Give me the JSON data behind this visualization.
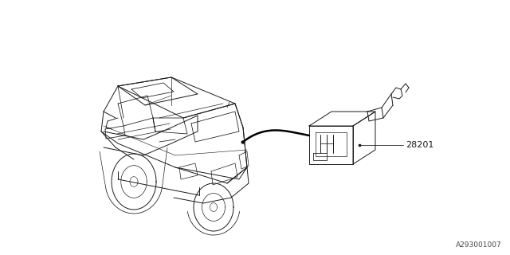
{
  "background_color": "#ffffff",
  "fig_width": 6.4,
  "fig_height": 3.2,
  "dpi": 100,
  "diagram_ref": "A293001007",
  "part_number": "28201",
  "line_color": "#1a1a1a",
  "line_width": 0.7
}
